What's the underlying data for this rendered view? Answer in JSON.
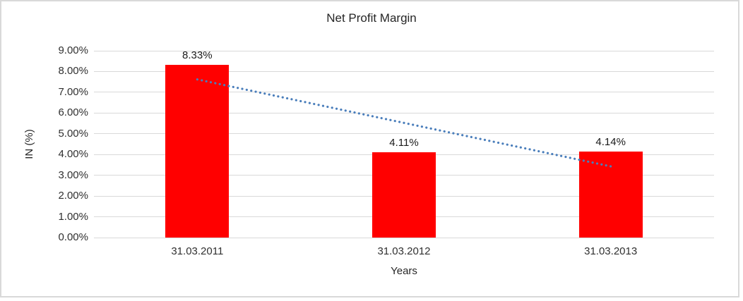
{
  "chart_data": {
    "type": "bar",
    "title": "Net Profit Margin",
    "xlabel": "Years",
    "ylabel": "IN (%)",
    "categories": [
      "31.03.2011",
      "31.03.2012",
      "31.03.2013"
    ],
    "values": [
      8.33,
      4.11,
      4.14
    ],
    "data_labels": [
      "8.33%",
      "4.11%",
      "4.14%"
    ],
    "ylim": [
      0,
      9
    ],
    "ytick_step": 1,
    "ytick_labels": [
      "0.00%",
      "1.00%",
      "2.00%",
      "3.00%",
      "4.00%",
      "5.00%",
      "6.00%",
      "7.00%",
      "8.00%",
      "9.00%"
    ],
    "grid": true,
    "legend": "none",
    "bar_color": "#ff0000",
    "gridline_color": "#d9d9d9",
    "frame_color": "#d9d9d9",
    "text_color": "#262626",
    "trendline": {
      "type": "linear",
      "style": "dotted",
      "color": "#4a7ebb",
      "start_value": 7.62,
      "end_value": 3.43
    }
  }
}
